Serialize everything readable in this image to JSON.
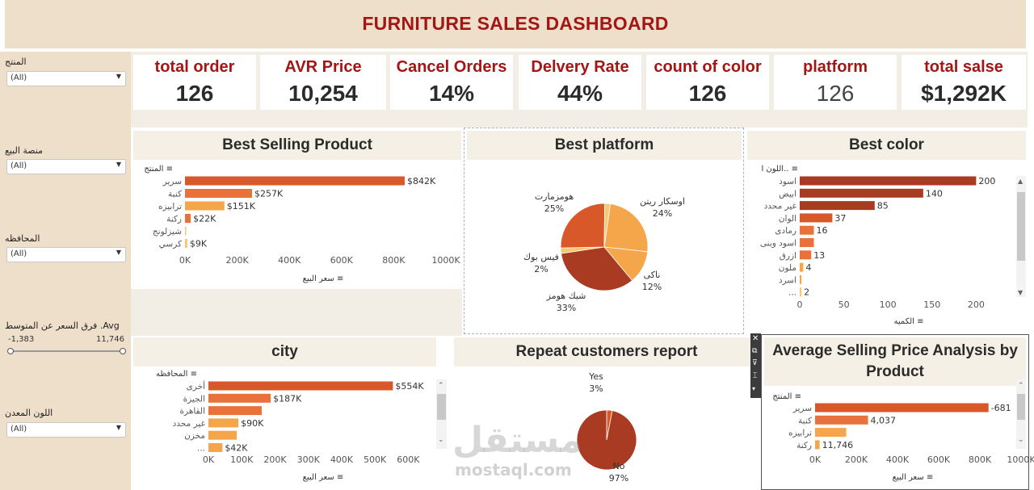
{
  "header": {
    "title": "FURNITURE SALES DASHBOARD"
  },
  "filters": {
    "product": {
      "label": "المنتج",
      "value": "(All)"
    },
    "platform": {
      "label": "منصة البيع",
      "value": "(All)"
    },
    "governorate": {
      "label": "المحافظه",
      "value": "(All)"
    },
    "price_diff": {
      "label": "فرق السعر عن المتوسط .Avg",
      "min": "-1,383",
      "max": "11,746"
    },
    "color": {
      "label": "اللون المعدن",
      "value": "(All)"
    }
  },
  "kpis": [
    {
      "label": "total order",
      "value": "126"
    },
    {
      "label": "AVR Price",
      "value": "10,254"
    },
    {
      "label": "Cancel Orders",
      "value": "14%"
    },
    {
      "label": "Delvery Rate",
      "value": "44%"
    },
    {
      "label": "count of color",
      "value": "126"
    },
    {
      "label": "platform",
      "value": "126"
    },
    {
      "label": "total salse",
      "value": "$1,292K"
    }
  ],
  "colors": {
    "dark": "#a93b22",
    "mid": "#d8582a",
    "orange": "#e8723a",
    "light": "#f5a54a",
    "pale": "#f7c872",
    "title_red": "#a31616"
  },
  "panels": {
    "best_product": {
      "title": "Best Selling Product",
      "dim_label": "المنتج",
      "axis_label": "سعر البيع"
    },
    "best_platform": {
      "title": "Best platform"
    },
    "best_color": {
      "title": "Best color",
      "dim_label": "اللون ا..",
      "axis_label": "الكميه"
    },
    "city": {
      "title": "city",
      "dim_label": "المحافظه",
      "axis_label": "سعر البيع"
    },
    "repeat": {
      "title": "Repeat customers report"
    },
    "avg_price": {
      "title": "Average Selling Price Analysis by Product",
      "dim_label": "المنتج",
      "axis_label": "سعر البيع"
    }
  },
  "watermark": {
    "text": "مستقل",
    "sub": "mostaql.com"
  },
  "chart_data": [
    {
      "id": "best_product",
      "type": "bar",
      "orientation": "horizontal",
      "title": "Best Selling Product",
      "xlabel": "سعر البيع",
      "ylabel": "المنتج",
      "categories": [
        "سرير",
        "كنبة",
        "ترابيزه",
        "ركنة",
        "شيزلونج",
        "كرسي"
      ],
      "values": [
        842,
        257,
        151,
        22,
        3,
        9
      ],
      "data_labels": [
        "$842K",
        "$257K",
        "$151K",
        "$22K",
        "",
        "$9K"
      ],
      "xlim": [
        0,
        1000
      ],
      "ticks": [
        "0K",
        "200K",
        "400K",
        "600K",
        "800K",
        "1000K"
      ],
      "tick_values": [
        0,
        200,
        400,
        600,
        800,
        1000
      ]
    },
    {
      "id": "best_platform",
      "type": "pie",
      "title": "Best platform",
      "slices": [
        {
          "label": "اوسكار ريتن",
          "pct_label": "24%",
          "value": 24
        },
        {
          "label": "ناكى",
          "pct_label": "12%",
          "value": 12
        },
        {
          "label": "شبك هومز",
          "pct_label": "33%",
          "value": 33
        },
        {
          "label": "فيس بوك",
          "pct_label": "2%",
          "value": 2
        },
        {
          "label": "هومزمارت",
          "pct_label": "25%",
          "value": 25
        },
        {
          "label": "",
          "pct_label": "",
          "value": 2
        }
      ]
    },
    {
      "id": "best_color",
      "type": "bar",
      "orientation": "horizontal",
      "title": "Best color",
      "xlabel": "الكميه",
      "ylabel": "اللون ا..",
      "categories": [
        "اسود",
        "ابيض",
        "غير محدد",
        "الوان",
        "رمادى",
        "اسود وبنى",
        "ازرق",
        "ملون",
        "اسرد",
        "..."
      ],
      "values": [
        200,
        140,
        85,
        37,
        16,
        16,
        13,
        4,
        2,
        2
      ],
      "data_labels": [
        "200",
        "140",
        "85",
        "37",
        "16",
        "",
        "13",
        "4",
        "",
        "2"
      ],
      "xlim": [
        0,
        240
      ],
      "ticks": [
        "0",
        "50",
        "100",
        "150",
        "200"
      ],
      "tick_values": [
        0,
        50,
        100,
        150,
        200
      ]
    },
    {
      "id": "city",
      "type": "bar",
      "orientation": "horizontal",
      "title": "city",
      "xlabel": "سعر البيع",
      "ylabel": "المحافظه",
      "categories": [
        "أخرى",
        "الجيزة",
        "القاهرة",
        "غير محدد",
        "مخزن",
        "..."
      ],
      "values": [
        554,
        187,
        160,
        90,
        85,
        42
      ],
      "data_labels": [
        "$554K",
        "$187K",
        "",
        "$90K",
        "",
        "$42K"
      ],
      "xlim": [
        0,
        650
      ],
      "ticks": [
        "0K",
        "100K",
        "200K",
        "300K",
        "400K",
        "500K",
        "600K"
      ],
      "tick_values": [
        0,
        100,
        200,
        300,
        400,
        500,
        600
      ]
    },
    {
      "id": "repeat",
      "type": "pie",
      "title": "Repeat customers report",
      "slices": [
        {
          "label": "Yes",
          "pct_label": "3%",
          "value": 3
        },
        {
          "label": "No",
          "pct_label": "97%",
          "value": 97
        }
      ]
    },
    {
      "id": "avg_price",
      "type": "bar",
      "orientation": "horizontal",
      "title": "Average Selling Price Analysis by Product",
      "xlabel": "سعر البيع",
      "ylabel": "المنتج",
      "categories": [
        "سرير",
        "كنبة",
        "ترابيزه",
        "ركنة"
      ],
      "values": [
        842,
        257,
        151,
        22
      ],
      "data_labels": [
        "-681",
        "4,037",
        "",
        "11,746"
      ],
      "xlim": [
        0,
        1000
      ],
      "ticks": [
        "0K",
        "200K",
        "400K",
        "600K",
        "800K",
        "1000K"
      ],
      "tick_values": [
        0,
        200,
        400,
        600,
        800,
        1000
      ]
    }
  ]
}
